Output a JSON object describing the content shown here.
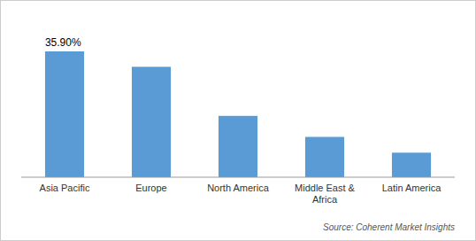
{
  "chart_data": {
    "type": "bar",
    "categories": [
      "Asia Pacific",
      "Europe",
      "North America",
      "Middle East &\nAfrica",
      "Latin America"
    ],
    "values": [
      35.9,
      31.5,
      17.5,
      11.5,
      7.0
    ],
    "color": "#5B9BD5",
    "ylim": [
      0,
      45
    ],
    "tick_labels": "x",
    "annotations": [
      {
        "text": "35.90%",
        "category": "Asia Pacific",
        "value": 35.9
      }
    ],
    "source": "Source: Coherent Market Insights"
  }
}
